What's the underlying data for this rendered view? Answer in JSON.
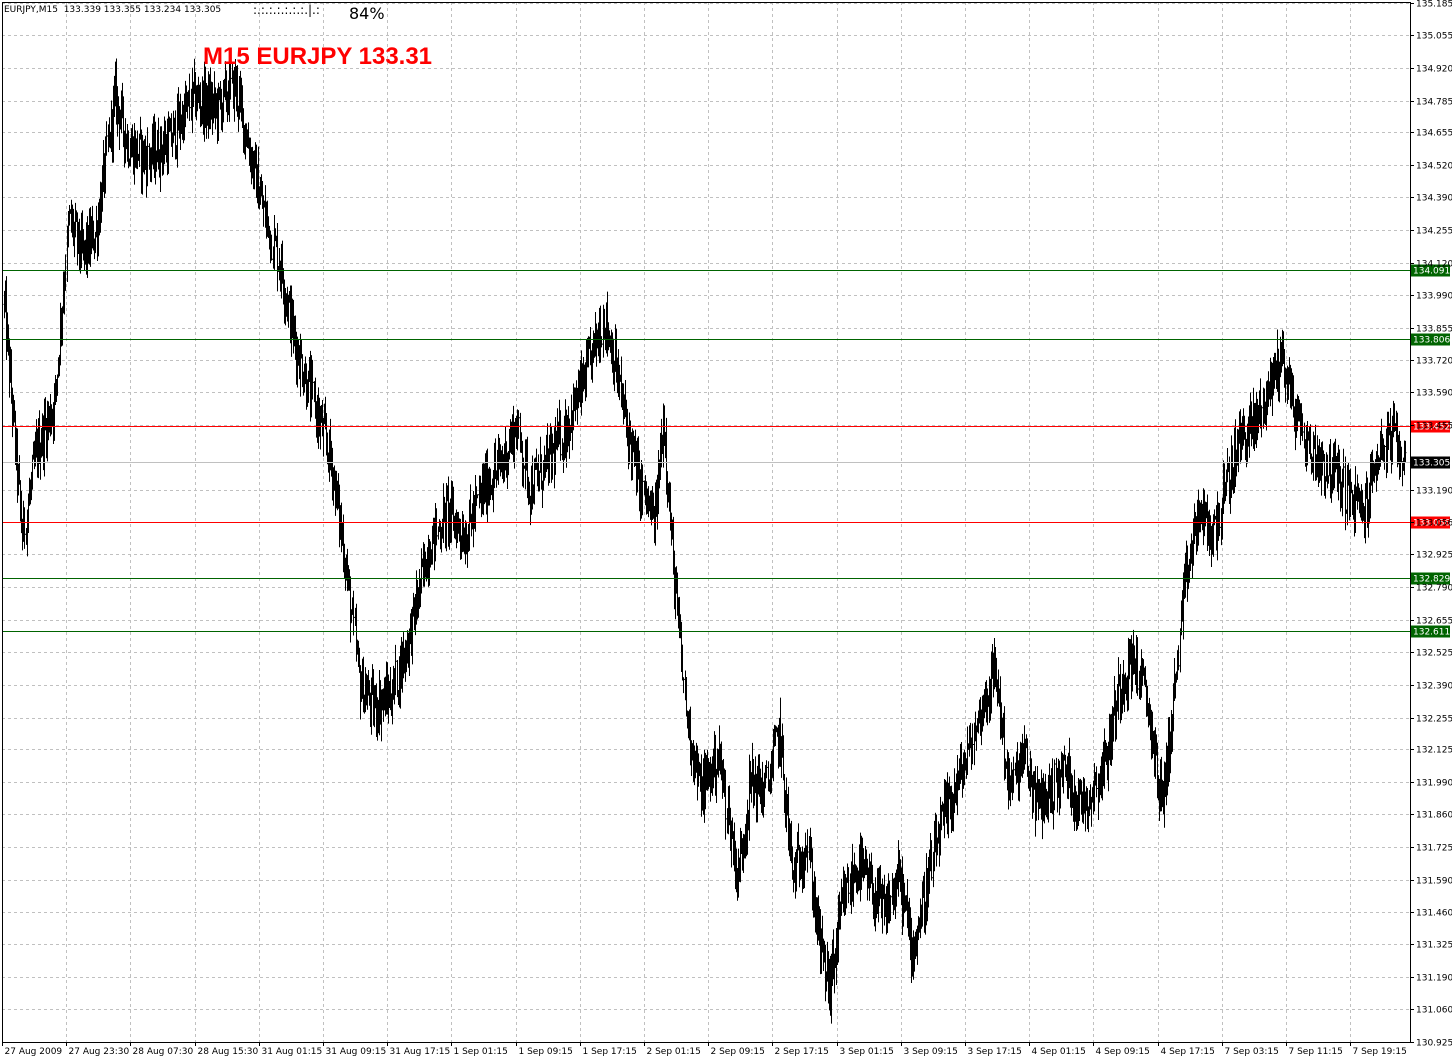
{
  "header": {
    "symbol_info": "EURJPY,M15  133.339 133.355 133.234 133.305",
    "progress_dots": ":.:.:.:.:.:.:.|.:",
    "progress_percent": "84%",
    "chart_label": "M15 EURJPY 133.31"
  },
  "colors": {
    "background": "#ffffff",
    "grid": "#c0c0c0",
    "bars": "#000000",
    "support_line": "#006400",
    "resistance_line": "#ff0000",
    "label_text": "#ffffff",
    "big_label": "#ff0000"
  },
  "chart_data": {
    "type": "ohlc",
    "symbol": "EURJPY",
    "timeframe": "M15",
    "ylim": [
      130.925,
      135.19
    ],
    "y_ticks": [
      "135.185",
      "135.055",
      "134.920",
      "134.785",
      "134.655",
      "134.520",
      "134.390",
      "134.255",
      "134.120",
      "133.990",
      "133.855",
      "133.720",
      "133.590",
      "133.455",
      "133.190",
      "133.056",
      "132.925",
      "132.790",
      "132.655",
      "132.525",
      "132.390",
      "132.255",
      "132.125",
      "131.990",
      "131.860",
      "131.725",
      "131.590",
      "131.460",
      "131.325",
      "131.190",
      "131.060",
      "130.925"
    ],
    "x_ticks": [
      "27 Aug 2009",
      "27 Aug 23:30",
      "28 Aug 07:30",
      "28 Aug 15:30",
      "31 Aug 01:15",
      "31 Aug 09:15",
      "31 Aug 17:15",
      "1 Sep 01:15",
      "1 Sep 09:15",
      "1 Sep 17:15",
      "2 Sep 01:15",
      "2 Sep 09:15",
      "2 Sep 17:15",
      "3 Sep 01:15",
      "3 Sep 09:15",
      "3 Sep 17:15",
      "4 Sep 01:15",
      "4 Sep 09:15",
      "4 Sep 17:15",
      "7 Sep 03:15",
      "7 Sep 11:15",
      "7 Sep 19:15"
    ],
    "last_price": "133.305",
    "horizontal_lines": [
      {
        "label": "134.091",
        "value": 134.091,
        "kind": "support"
      },
      {
        "label": "133.806",
        "value": 133.806,
        "kind": "support"
      },
      {
        "label": "133.452",
        "value": 133.452,
        "kind": "resistance"
      },
      {
        "label": "133.056",
        "value": 133.056,
        "kind": "resistance"
      },
      {
        "label": "132.829",
        "value": 132.829,
        "kind": "support"
      },
      {
        "label": "132.611",
        "value": 132.611,
        "kind": "support"
      }
    ],
    "price_path_keypoints": [
      [
        0,
        133.95
      ],
      [
        4,
        133.0
      ],
      [
        7,
        133.35
      ],
      [
        11,
        133.55
      ],
      [
        14,
        134.3
      ],
      [
        17,
        134.15
      ],
      [
        20,
        134.25
      ],
      [
        24,
        134.8
      ],
      [
        27,
        134.6
      ],
      [
        31,
        134.55
      ],
      [
        36,
        134.62
      ],
      [
        41,
        134.8
      ],
      [
        46,
        134.75
      ],
      [
        50,
        134.85
      ],
      [
        53,
        134.6
      ],
      [
        56,
        134.35
      ],
      [
        60,
        134.1
      ],
      [
        63,
        133.8
      ],
      [
        67,
        133.55
      ],
      [
        71,
        133.3
      ],
      [
        74,
        132.9
      ],
      [
        77,
        132.4
      ],
      [
        80,
        132.3
      ],
      [
        84,
        132.35
      ],
      [
        88,
        132.6
      ],
      [
        92,
        132.95
      ],
      [
        96,
        133.1
      ],
      [
        100,
        133.0
      ],
      [
        104,
        133.2
      ],
      [
        108,
        133.3
      ],
      [
        111,
        133.45
      ],
      [
        114,
        133.2
      ],
      [
        118,
        133.3
      ],
      [
        122,
        133.45
      ],
      [
        126,
        133.65
      ],
      [
        130,
        133.9
      ],
      [
        132,
        133.75
      ],
      [
        135,
        133.45
      ],
      [
        138,
        133.2
      ],
      [
        141,
        133.05
      ],
      [
        143,
        133.5
      ],
      [
        145,
        132.9
      ],
      [
        148,
        132.25
      ],
      [
        151,
        131.95
      ],
      [
        155,
        132.1
      ],
      [
        159,
        131.6
      ],
      [
        162,
        132.0
      ],
      [
        165,
        131.95
      ],
      [
        168,
        132.2
      ],
      [
        171,
        131.6
      ],
      [
        174,
        131.75
      ],
      [
        177,
        131.3
      ],
      [
        179,
        131.15
      ],
      [
        182,
        131.5
      ],
      [
        185,
        131.65
      ],
      [
        188,
        131.55
      ],
      [
        191,
        131.45
      ],
      [
        194,
        131.6
      ],
      [
        197,
        131.3
      ],
      [
        200,
        131.55
      ],
      [
        203,
        131.8
      ],
      [
        206,
        131.95
      ],
      [
        209,
        132.1
      ],
      [
        212,
        132.3
      ],
      [
        215,
        132.45
      ],
      [
        218,
        131.95
      ],
      [
        221,
        132.1
      ],
      [
        224,
        131.9
      ],
      [
        227,
        131.95
      ],
      [
        230,
        132.05
      ],
      [
        233,
        131.9
      ],
      [
        236,
        131.95
      ],
      [
        239,
        132.1
      ],
      [
        242,
        132.4
      ],
      [
        245,
        132.5
      ],
      [
        248,
        132.3
      ],
      [
        251,
        131.9
      ],
      [
        253,
        132.2
      ],
      [
        256,
        132.8
      ],
      [
        259,
        133.1
      ],
      [
        262,
        133.0
      ],
      [
        265,
        133.2
      ],
      [
        268,
        133.4
      ],
      [
        271,
        133.45
      ],
      [
        274,
        133.6
      ],
      [
        277,
        133.75
      ],
      [
        280,
        133.5
      ],
      [
        283,
        133.35
      ],
      [
        286,
        133.3
      ],
      [
        289,
        133.25
      ],
      [
        292,
        133.15
      ],
      [
        295,
        133.1
      ],
      [
        298,
        133.35
      ],
      [
        301,
        133.4
      ],
      [
        304,
        133.3
      ]
    ]
  }
}
